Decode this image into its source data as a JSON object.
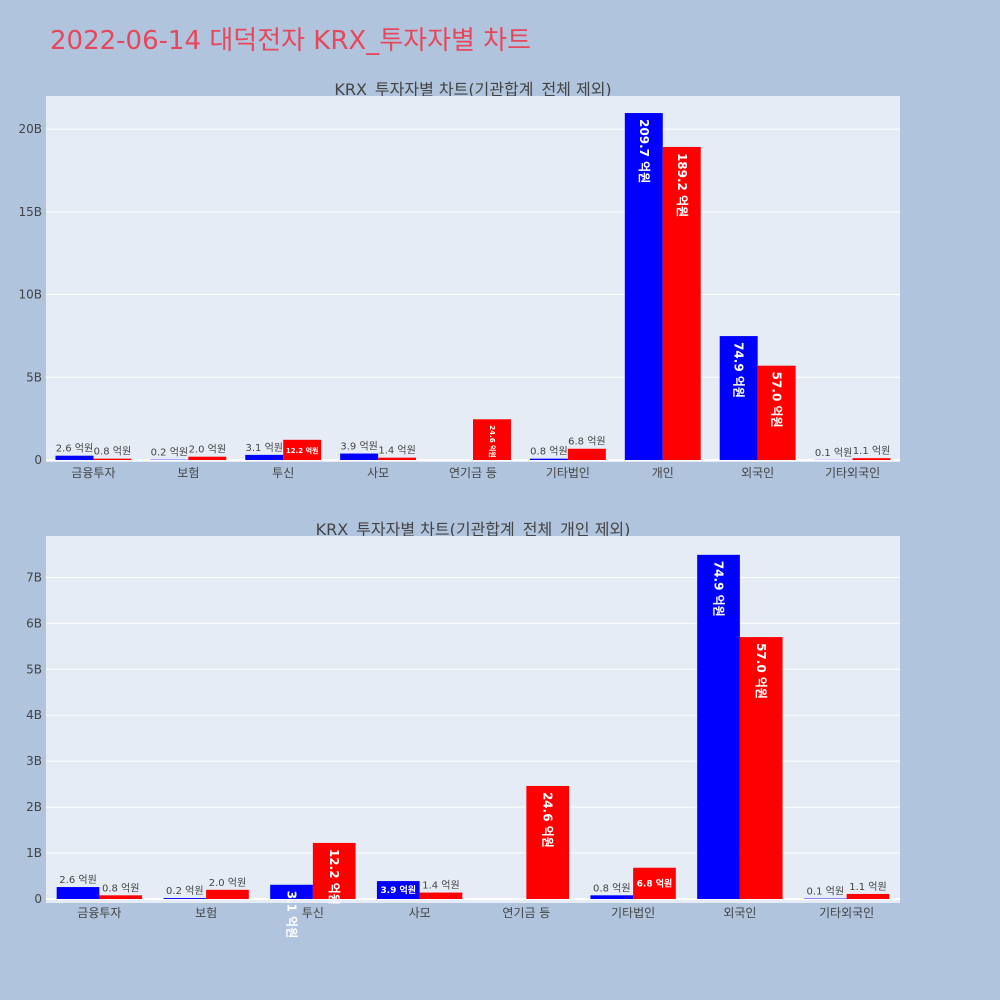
{
  "title": "2022-06-14 대덕전자 KRX_투자자별 차트",
  "colors": {
    "buy": "#0000ff",
    "sell": "#ff0000",
    "plot_bg": "#e5ecf6",
    "page_bg": "#b0c4de",
    "title": "#e8475b"
  },
  "chart_data": [
    {
      "type": "bar",
      "title": "KRX_투자자별 차트(기관합계_전체 제외)",
      "categories": [
        "금융투자",
        "보험",
        "투신",
        "사모",
        "연기금 등",
        "기타법인",
        "개인",
        "외국인",
        "기타외국인"
      ],
      "series": [
        {
          "values": [
            0.26,
            0.02,
            0.31,
            0.39,
            0.0,
            0.08,
            20.97,
            7.49,
            0.01
          ],
          "labels": [
            "2.6 억원",
            "0.2 억원",
            "3.1 억원",
            "3.9 억원",
            "",
            "0.8 억원",
            "209.7 억원",
            "74.9 억원",
            "0.1 억원"
          ]
        },
        {
          "values": [
            0.08,
            0.2,
            1.22,
            0.14,
            2.46,
            0.68,
            18.92,
            5.7,
            0.11
          ],
          "labels": [
            "0.8 억원",
            "2.0 억원",
            "12.2 억원",
            "1.4 억원",
            "24.6 억원",
            "6.8 억원",
            "189.2 억원",
            "57.0 억원",
            "1.1 억원"
          ]
        }
      ],
      "y_ticks": [
        0,
        5,
        10,
        15,
        20
      ],
      "y_tick_labels": [
        "0",
        "5B",
        "10B",
        "15B",
        "20B"
      ],
      "ylim": [
        0,
        22
      ],
      "grid": true,
      "legend": "none"
    },
    {
      "type": "bar",
      "title": "KRX_투자자별 차트(기관합계_전체_개인 제외)",
      "categories": [
        "금융투자",
        "보험",
        "투신",
        "사모",
        "연기금 등",
        "기타법인",
        "외국인",
        "기타외국인"
      ],
      "series": [
        {
          "values": [
            0.26,
            0.02,
            0.31,
            0.39,
            0.0,
            0.08,
            7.49,
            0.01
          ],
          "labels": [
            "2.6 억원",
            "0.2 억원",
            "3.1 억원",
            "3.9 억원",
            "",
            "0.8 억원",
            "74.9 억원",
            "0.1 억원"
          ]
        },
        {
          "values": [
            0.08,
            0.2,
            1.22,
            0.14,
            2.46,
            0.68,
            5.7,
            0.11
          ],
          "labels": [
            "0.8 억원",
            "2.0 억원",
            "12.2 억원",
            "1.4 억원",
            "24.6 억원",
            "6.8 억원",
            "57.0 억원",
            "1.1 억원"
          ]
        }
      ],
      "y_ticks": [
        0,
        1,
        2,
        3,
        4,
        5,
        6,
        7
      ],
      "y_tick_labels": [
        "0",
        "1B",
        "2B",
        "3B",
        "4B",
        "5B",
        "6B",
        "7B"
      ],
      "ylim": [
        0,
        7.9
      ],
      "grid": true,
      "legend": "none"
    }
  ]
}
